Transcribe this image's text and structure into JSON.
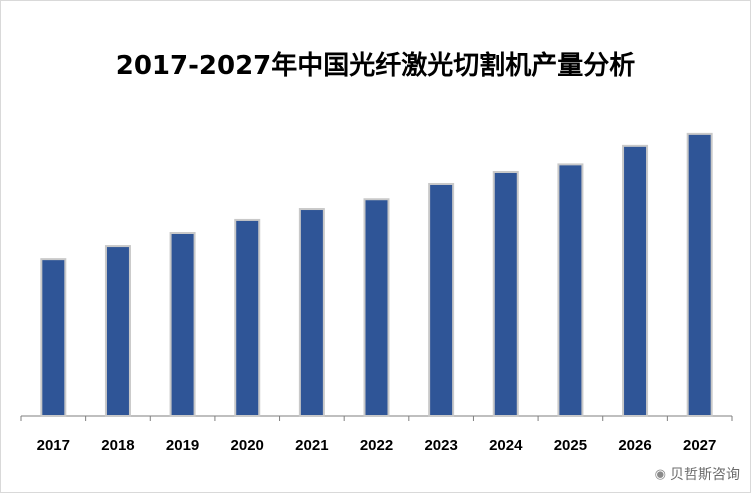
{
  "title": "2017-2027年中国光纤激光切割机产量分析",
  "watermark": {
    "text": "贝哲斯咨询",
    "icon": "weibo-icon"
  },
  "colors": {
    "bar": "#2f5597",
    "bar_outline": "#c9c9c9",
    "axis": "#7f7f7f"
  },
  "chart_data": {
    "type": "bar",
    "title": "2017-2027年中国光纤激光切割机产量分析",
    "categories": [
      "2017",
      "2018",
      "2019",
      "2020",
      "2021",
      "2022",
      "2023",
      "2024",
      "2025",
      "2026",
      "2027"
    ],
    "values": [
      144,
      156,
      168,
      180,
      190,
      199,
      213,
      224,
      231,
      248,
      259
    ],
    "xlabel": "",
    "ylabel": "",
    "ylim": [
      0,
      280
    ],
    "grid": false,
    "legend": "none"
  }
}
